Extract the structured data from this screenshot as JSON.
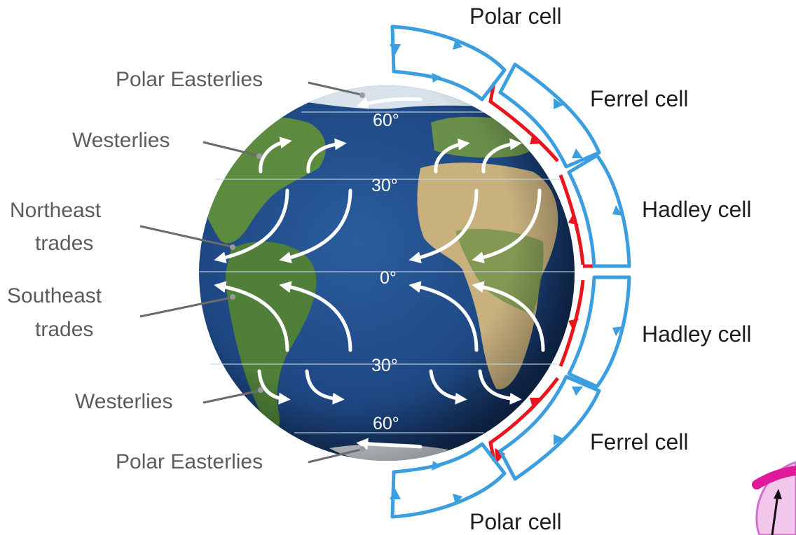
{
  "diagram": {
    "latitude_labels": {
      "north_60": "60°",
      "north_30": "30°",
      "equator": "0°",
      "south_30": "30°",
      "south_60": "60°"
    },
    "wind_labels": {
      "polar_easterlies_north": "Polar Easterlies",
      "westerlies_north": "Westerlies",
      "northeast_trades_line1": "Northeast",
      "northeast_trades_line2": "trades",
      "southeast_trades_line1": "Southeast",
      "southeast_trades_line2": "trades",
      "westerlies_south": "Westerlies",
      "polar_easterlies_south": "Polar Easterlies"
    },
    "cell_labels": {
      "polar_north": "Polar cell",
      "ferrel_north": "Ferrel cell",
      "hadley_north": "Hadley cell",
      "hadley_south": "Hadley cell",
      "ferrel_south": "Ferrel cell",
      "polar_south": "Polar cell"
    },
    "colors": {
      "cell_outline": "#3a9ee0",
      "surface_flow": "#e8151d",
      "ocean": "#1f4a86",
      "land": "#5c8a3e",
      "desert": "#c9b17e",
      "wind_arrows": "#ffffff"
    }
  }
}
